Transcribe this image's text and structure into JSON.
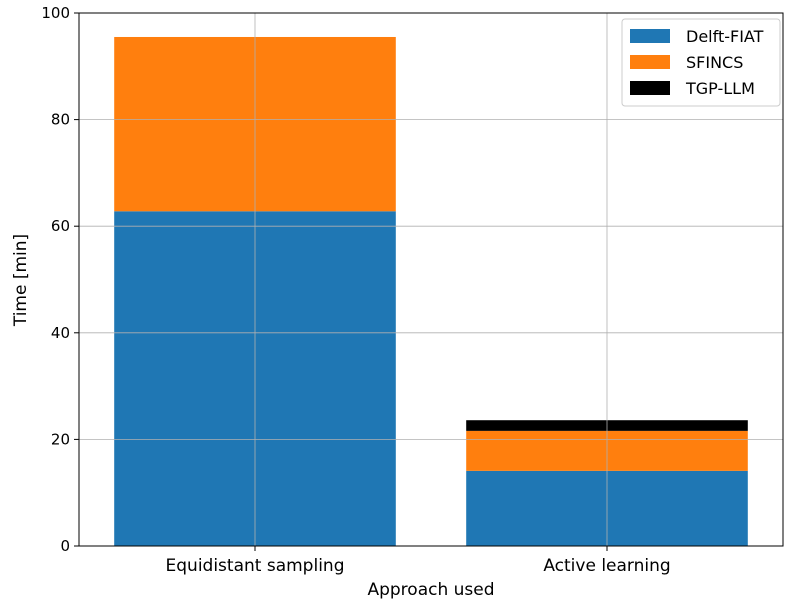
{
  "chart_data": {
    "type": "bar",
    "stacked": true,
    "categories": [
      "Equidistant sampling",
      "Active learning"
    ],
    "series": [
      {
        "name": "Delft-FIAT",
        "color": "#1f77b4",
        "values": [
          62.8,
          14.1
        ]
      },
      {
        "name": "SFINCS",
        "color": "#ff7f0e",
        "values": [
          32.7,
          7.5
        ]
      },
      {
        "name": "TGP-LLM",
        "color": "#000000",
        "values": [
          0,
          2.0
        ]
      }
    ],
    "xlabel": "Approach used",
    "ylabel": "Time [min]",
    "ylim": [
      0,
      100
    ],
    "yticks": [
      0,
      20,
      40,
      60,
      80,
      100
    ],
    "grid": true,
    "legend_position": "top-right"
  }
}
